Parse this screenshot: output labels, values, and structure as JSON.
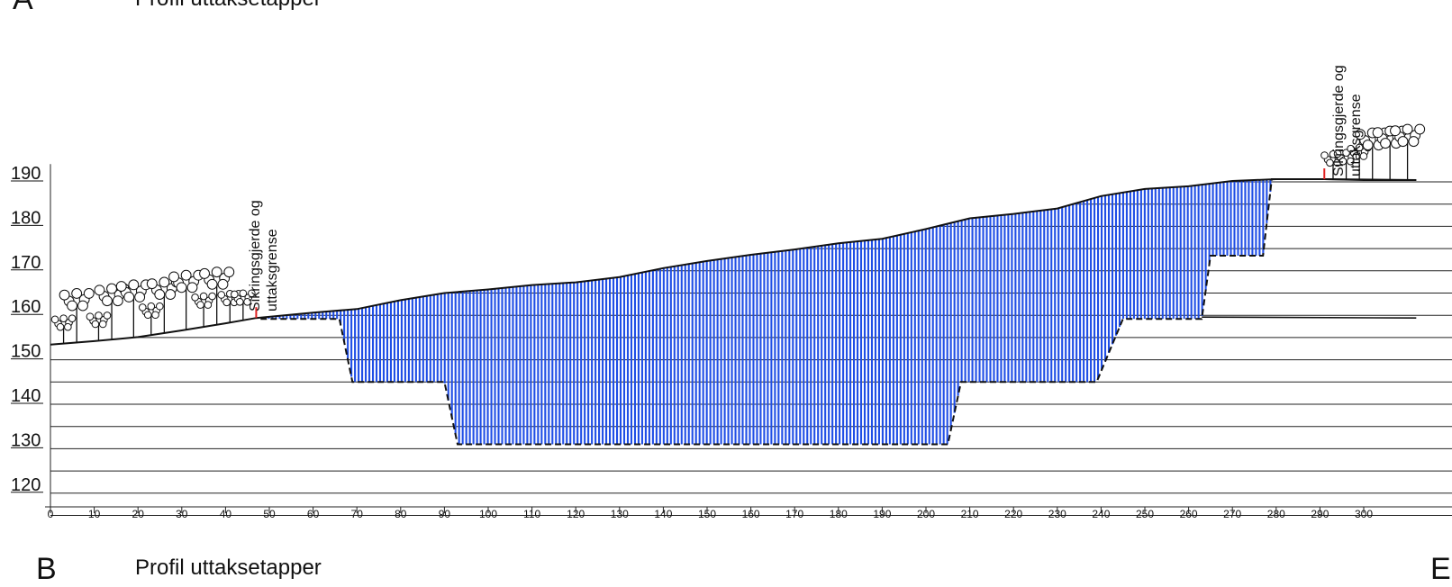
{
  "sheet_top": {
    "letter": "A",
    "title": "Profil uttaksetapper"
  },
  "sheet_bottom": {
    "letter": "B",
    "title": "Profil uttaksetapper",
    "letter_right": "E"
  },
  "annotations": [
    {
      "lines": [
        "Sikringsgjerde og",
        "uttaksgrense"
      ],
      "station": 47
    },
    {
      "lines": [
        "Sikringsgjerde og",
        "uttaksgrense"
      ],
      "station": 291
    }
  ],
  "chart_data": {
    "type": "area",
    "title": "Profil uttaksetapper",
    "xlabel": "",
    "ylabel": "",
    "xlim": [
      0,
      310
    ],
    "ylim": [
      118,
      192
    ],
    "x_ticks": [
      0,
      10,
      20,
      30,
      40,
      50,
      60,
      70,
      80,
      90,
      100,
      110,
      120,
      130,
      140,
      150,
      160,
      170,
      180,
      190,
      200,
      210,
      220,
      230,
      240,
      250,
      260,
      270,
      280,
      290,
      300
    ],
    "elevation_labels": [
      190,
      180,
      170,
      160,
      150,
      140,
      130,
      120
    ],
    "grid_levels": [
      190,
      185,
      180,
      175,
      170,
      165,
      160,
      155,
      150,
      145,
      140,
      135,
      130,
      125,
      120,
      115
    ],
    "colors": {
      "fill": "#1f4ee6",
      "line": "#111111",
      "boundary": "#e02020"
    },
    "terrain": [
      {
        "x": 0,
        "y": 153.4
      },
      {
        "x": 10,
        "y": 154.2
      },
      {
        "x": 20,
        "y": 155.1
      },
      {
        "x": 30,
        "y": 156.6
      },
      {
        "x": 40,
        "y": 158.2
      },
      {
        "x": 47,
        "y": 159.4
      },
      {
        "x": 60,
        "y": 160.6
      },
      {
        "x": 70,
        "y": 161.4
      },
      {
        "x": 80,
        "y": 163.4
      },
      {
        "x": 90,
        "y": 165.0
      },
      {
        "x": 100,
        "y": 165.8
      },
      {
        "x": 110,
        "y": 166.8
      },
      {
        "x": 120,
        "y": 167.4
      },
      {
        "x": 130,
        "y": 168.6
      },
      {
        "x": 140,
        "y": 170.6
      },
      {
        "x": 150,
        "y": 172.2
      },
      {
        "x": 160,
        "y": 173.6
      },
      {
        "x": 170,
        "y": 174.8
      },
      {
        "x": 180,
        "y": 176.2
      },
      {
        "x": 190,
        "y": 177.2
      },
      {
        "x": 200,
        "y": 179.4
      },
      {
        "x": 210,
        "y": 181.8
      },
      {
        "x": 220,
        "y": 182.8
      },
      {
        "x": 230,
        "y": 184.0
      },
      {
        "x": 240,
        "y": 186.8
      },
      {
        "x": 250,
        "y": 188.4
      },
      {
        "x": 260,
        "y": 189.0
      },
      {
        "x": 270,
        "y": 190.2
      },
      {
        "x": 280,
        "y": 190.6
      },
      {
        "x": 291,
        "y": 190.6
      },
      {
        "x": 300,
        "y": 190.4
      },
      {
        "x": 312,
        "y": 190.4
      }
    ],
    "excavation_floor": [
      {
        "x": 48,
        "y": 159.2
      },
      {
        "x": 66,
        "y": 159.2
      },
      {
        "x": 69,
        "y": 145.0
      },
      {
        "x": 90,
        "y": 145.0
      },
      {
        "x": 93,
        "y": 131.0
      },
      {
        "x": 205,
        "y": 131.0
      },
      {
        "x": 208,
        "y": 145.0
      },
      {
        "x": 239,
        "y": 145.0
      },
      {
        "x": 245,
        "y": 159.2
      },
      {
        "x": 263,
        "y": 159.2
      },
      {
        "x": 265,
        "y": 173.4
      },
      {
        "x": 277,
        "y": 173.4
      },
      {
        "x": 279,
        "y": 190.6
      },
      {
        "x": 291,
        "y": 190.6
      }
    ],
    "final_surface": [
      {
        "x": 280,
        "y": 190.6
      },
      {
        "x": 291,
        "y": 190.6
      },
      {
        "x": 312,
        "y": 190.4
      }
    ],
    "level_160_line": [
      {
        "x": 263,
        "y": 159.6
      },
      {
        "x": 312,
        "y": 159.4
      }
    ],
    "trees": [
      {
        "x": 3,
        "h": 22,
        "s": 0.7
      },
      {
        "x": 6,
        "h": 46,
        "s": 1.0
      },
      {
        "x": 11,
        "h": 22,
        "s": 0.7
      },
      {
        "x": 14,
        "h": 48,
        "s": 1.0
      },
      {
        "x": 19,
        "h": 50,
        "s": 1.0
      },
      {
        "x": 23,
        "h": 26,
        "s": 0.7
      },
      {
        "x": 26,
        "h": 48,
        "s": 1.0
      },
      {
        "x": 31,
        "h": 52,
        "s": 1.0
      },
      {
        "x": 35,
        "h": 28,
        "s": 0.7
      },
      {
        "x": 38,
        "h": 50,
        "s": 1.0
      },
      {
        "x": 41,
        "h": 26,
        "s": 0.7
      },
      {
        "x": 44,
        "h": 24,
        "s": 0.7
      },
      {
        "x": 293,
        "h": 22,
        "s": 0.7
      },
      {
        "x": 296,
        "h": 24,
        "s": 0.7
      },
      {
        "x": 299,
        "h": 30,
        "s": 0.7
      },
      {
        "x": 302,
        "h": 44,
        "s": 1.0
      },
      {
        "x": 306,
        "h": 46,
        "s": 1.0
      },
      {
        "x": 310,
        "h": 48,
        "s": 1.0
      }
    ]
  }
}
